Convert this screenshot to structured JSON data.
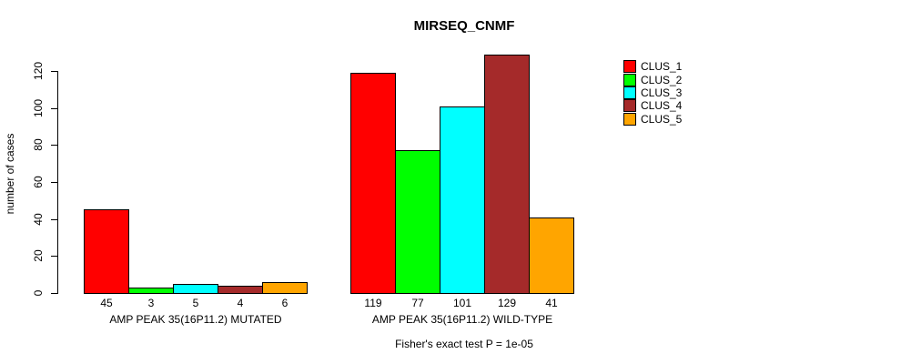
{
  "chart_data": {
    "type": "bar",
    "title": "MIRSEQ_CNMF",
    "ylabel": "number of cases",
    "xlabel": "Fisher's exact test P = 1e-05",
    "ylim": [
      0,
      120
    ],
    "yticks": [
      0,
      20,
      40,
      60,
      80,
      100,
      120
    ],
    "grid": false,
    "legend_position": "top-right",
    "bar_border_color": "#000000",
    "series": [
      {
        "name": "CLUS_1",
        "color": "#FF0000"
      },
      {
        "name": "CLUS_2",
        "color": "#00FF00"
      },
      {
        "name": "CLUS_3",
        "color": "#00FFFF"
      },
      {
        "name": "CLUS_4",
        "color": "#A52A2A"
      },
      {
        "name": "CLUS_5",
        "color": "#FFA500"
      }
    ],
    "groups": [
      {
        "label": "AMP PEAK 35(16P11.2) MUTATED",
        "values": [
          45,
          3,
          5,
          4,
          6
        ]
      },
      {
        "label": "AMP PEAK 35(16P11.2) WILD-TYPE",
        "values": [
          119,
          77,
          101,
          129,
          41
        ]
      }
    ]
  }
}
